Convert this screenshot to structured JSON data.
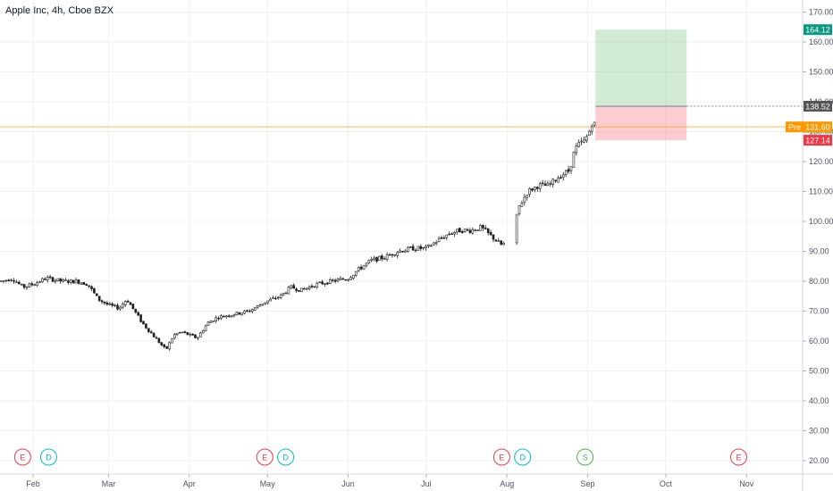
{
  "header": {
    "title": "Apple Inc, 4h, Cboe BZX"
  },
  "chart_data": {
    "type": "candlestick",
    "title": "Apple Inc, 4h, Cboe BZX",
    "ylim": [
      17,
      173
    ],
    "y_ticks": [
      20,
      30,
      40,
      50,
      60,
      70,
      80,
      90,
      100,
      110,
      120,
      130,
      140,
      150,
      160,
      170
    ],
    "y_tick_labels": [
      "20.00",
      "30.00",
      "40.00",
      "50.00",
      "60.00",
      "70.00",
      "80.00",
      "90.00",
      "100.00",
      "110.00",
      "120.00",
      "130.00",
      "140.00",
      "150.00",
      "160.00",
      "170.00"
    ],
    "x_labels": [
      "Feb",
      "Mar",
      "Apr",
      "May",
      "Jun",
      "Jul",
      "Aug",
      "Sep",
      "Oct",
      "Nov"
    ],
    "x_label_dates": [
      "2020-02-01",
      "2020-03-01",
      "2020-04-01",
      "2020-05-01",
      "2020-06-01",
      "2020-07-01",
      "2020-08-01",
      "2020-09-01",
      "2020-10-01",
      "2020-11-01"
    ],
    "close_path": [
      [
        "2020-01-20",
        80
      ],
      [
        "2020-01-24",
        81
      ],
      [
        "2020-01-28",
        78
      ],
      [
        "2020-02-01",
        79
      ],
      [
        "2020-02-06",
        81
      ],
      [
        "2020-02-12",
        80
      ],
      [
        "2020-02-18",
        80
      ],
      [
        "2020-02-22",
        79
      ],
      [
        "2020-02-26",
        74
      ],
      [
        "2020-03-01",
        72
      ],
      [
        "2020-03-05",
        71
      ],
      [
        "2020-03-08",
        74
      ],
      [
        "2020-03-11",
        70
      ],
      [
        "2020-03-14",
        66
      ],
      [
        "2020-03-17",
        63
      ],
      [
        "2020-03-20",
        60
      ],
      [
        "2020-03-23",
        57
      ],
      [
        "2020-03-26",
        62
      ],
      [
        "2020-03-29",
        63
      ],
      [
        "2020-04-01",
        62
      ],
      [
        "2020-04-04",
        61
      ],
      [
        "2020-04-08",
        66
      ],
      [
        "2020-04-12",
        68
      ],
      [
        "2020-04-18",
        69
      ],
      [
        "2020-04-24",
        70
      ],
      [
        "2020-04-30",
        73
      ],
      [
        "2020-05-06",
        75
      ],
      [
        "2020-05-10",
        78
      ],
      [
        "2020-05-14",
        77
      ],
      [
        "2020-05-20",
        79
      ],
      [
        "2020-05-26",
        80
      ],
      [
        "2020-06-01",
        81
      ],
      [
        "2020-06-05",
        84
      ],
      [
        "2020-06-10",
        87
      ],
      [
        "2020-06-15",
        88
      ],
      [
        "2020-06-20",
        90
      ],
      [
        "2020-06-26",
        91
      ],
      [
        "2020-07-01",
        91
      ],
      [
        "2020-07-06",
        94
      ],
      [
        "2020-07-10",
        96
      ],
      [
        "2020-07-14",
        97
      ],
      [
        "2020-07-18",
        97
      ],
      [
        "2020-07-22",
        98
      ],
      [
        "2020-07-26",
        95
      ],
      [
        "2020-07-30",
        92
      ],
      [
        "2020-08-02",
        94
      ],
      [
        "2020-08-04",
        95
      ],
      [
        "2020-08-05",
        104
      ],
      [
        "2020-08-09",
        110
      ],
      [
        "2020-08-13",
        112
      ],
      [
        "2020-08-17",
        112
      ],
      [
        "2020-08-21",
        115
      ],
      [
        "2020-08-25",
        117
      ],
      [
        "2020-08-27",
        124
      ],
      [
        "2020-08-29",
        126
      ],
      [
        "2020-08-31",
        127
      ],
      [
        "2020-09-02",
        131
      ],
      [
        "2020-09-03",
        134
      ],
      [
        "2020-09-04",
        131.49
      ]
    ],
    "position": {
      "target": 164.12,
      "entry": 138.52,
      "stop": 127.14,
      "start_date": "2020-09-04",
      "end_date": "2020-10-09",
      "profit_color": "#4caf50",
      "loss_color": "#f23645"
    },
    "price_lines": [
      {
        "label": "Pre",
        "value": 131.6,
        "text": "131.60",
        "color": "#ff9800"
      }
    ],
    "price_labels": [
      {
        "value": 164.12,
        "text": "164.12",
        "color": "#089981"
      },
      {
        "value": 138.52,
        "text": "138.52",
        "color": "#555555"
      },
      {
        "value": 131.49,
        "text": "131.49",
        "color": "#4caf50"
      },
      {
        "value": 127.14,
        "text": "127.14",
        "color": "#f23645"
      }
    ],
    "events": [
      {
        "type": "E",
        "date": "2020-01-28",
        "color": "#f23645"
      },
      {
        "type": "D",
        "date": "2020-02-07",
        "color": "#00bcd4"
      },
      {
        "type": "E",
        "date": "2020-04-30",
        "color": "#f23645"
      },
      {
        "type": "D",
        "date": "2020-05-08",
        "color": "#00bcd4"
      },
      {
        "type": "E",
        "date": "2020-07-30",
        "color": "#f23645"
      },
      {
        "type": "D",
        "date": "2020-08-07",
        "color": "#00bcd4"
      },
      {
        "type": "S",
        "date": "2020-08-31",
        "color": "#4caf50"
      },
      {
        "type": "E",
        "date": "2020-10-29",
        "color": "#f23645"
      }
    ]
  }
}
